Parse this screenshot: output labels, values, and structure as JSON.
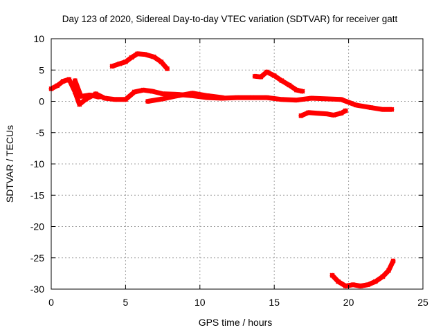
{
  "chart_data": {
    "type": "line",
    "title": "Day 123 of 2020, Sidereal Day-to-day VTEC variation (SDTVAR) for receiver gatt",
    "xlabel": "GPS time / hours",
    "ylabel": "SDTVAR / TECUs",
    "xlim": [
      0,
      25
    ],
    "ylim": [
      -30,
      10
    ],
    "xticks": [
      0,
      5,
      10,
      15,
      20,
      25
    ],
    "yticks": [
      -30,
      -25,
      -20,
      -15,
      -10,
      -5,
      0,
      5,
      10
    ],
    "grid": true,
    "color": "#ff0000",
    "series": [
      {
        "name": "arc-1",
        "points": [
          [
            0,
            2
          ],
          [
            0.4,
            2.5
          ],
          [
            0.8,
            3.2
          ],
          [
            1.2,
            3.5
          ],
          [
            1.6,
            1.5
          ],
          [
            1.9,
            -0.5
          ],
          [
            2.3,
            0.3
          ],
          [
            3.0,
            1.2
          ],
          [
            3.6,
            0.5
          ],
          [
            4.3,
            0.3
          ],
          [
            5.0,
            0.3
          ],
          [
            5.6,
            1.5
          ],
          [
            6.2,
            1.8
          ],
          [
            6.8,
            1.6
          ],
          [
            7.5,
            1.2
          ],
          [
            8.5,
            1.1
          ],
          [
            9.5,
            0.9
          ],
          [
            10.5,
            0.6
          ],
          [
            11.5,
            0.5
          ],
          [
            12.5,
            0.6
          ],
          [
            13.5,
            0.6
          ],
          [
            14.5,
            0.6
          ],
          [
            15.5,
            0.3
          ],
          [
            16.5,
            0.2
          ],
          [
            17.5,
            0.5
          ],
          [
            18.5,
            0.4
          ],
          [
            19.5,
            0.3
          ],
          [
            20.5,
            -0.6
          ],
          [
            21.5,
            -1.0
          ],
          [
            22.3,
            -1.3
          ],
          [
            22.9,
            -1.3
          ]
        ]
      },
      {
        "name": "arc-2",
        "points": [
          [
            1.6,
            3.3
          ],
          [
            2.0,
            0.8
          ],
          [
            2.6,
            1.0
          ],
          [
            3.2,
            0.7
          ]
        ]
      },
      {
        "name": "arc-3",
        "points": [
          [
            6.5,
            0
          ],
          [
            7.5,
            0.4
          ],
          [
            8.5,
            0.9
          ],
          [
            9.5,
            1.3
          ],
          [
            10.5,
            0.9
          ],
          [
            11.5,
            0.6
          ]
        ]
      },
      {
        "name": "arc-4",
        "points": [
          [
            4.1,
            5.6
          ],
          [
            4.6,
            6.0
          ],
          [
            5.0,
            6.3
          ],
          [
            5.4,
            7.0
          ],
          [
            5.8,
            7.6
          ],
          [
            6.3,
            7.5
          ],
          [
            6.9,
            7.1
          ],
          [
            7.4,
            6.3
          ],
          [
            7.8,
            5.2
          ]
        ]
      },
      {
        "name": "arc-5",
        "points": [
          [
            13.7,
            4.0
          ],
          [
            14.1,
            3.9
          ],
          [
            14.5,
            4.7
          ],
          [
            15.0,
            4.1
          ],
          [
            15.5,
            3.3
          ],
          [
            16.0,
            2.6
          ],
          [
            16.5,
            1.8
          ],
          [
            16.9,
            1.6
          ]
        ]
      },
      {
        "name": "arc-6",
        "points": [
          [
            16.8,
            -2.3
          ],
          [
            17.3,
            -1.8
          ],
          [
            17.9,
            -1.9
          ],
          [
            18.5,
            -2.0
          ],
          [
            19.0,
            -2.2
          ],
          [
            19.5,
            -1.9
          ],
          [
            19.8,
            -1.5
          ]
        ]
      },
      {
        "name": "arc-7",
        "points": [
          [
            18.9,
            -27.8
          ],
          [
            19.3,
            -28.8
          ],
          [
            19.8,
            -29.5
          ],
          [
            20.3,
            -29.3
          ],
          [
            20.8,
            -29.5
          ],
          [
            21.3,
            -29.3
          ],
          [
            21.8,
            -28.8
          ],
          [
            22.3,
            -28.0
          ],
          [
            22.7,
            -27.0
          ],
          [
            23.0,
            -25.5
          ]
        ]
      }
    ]
  }
}
